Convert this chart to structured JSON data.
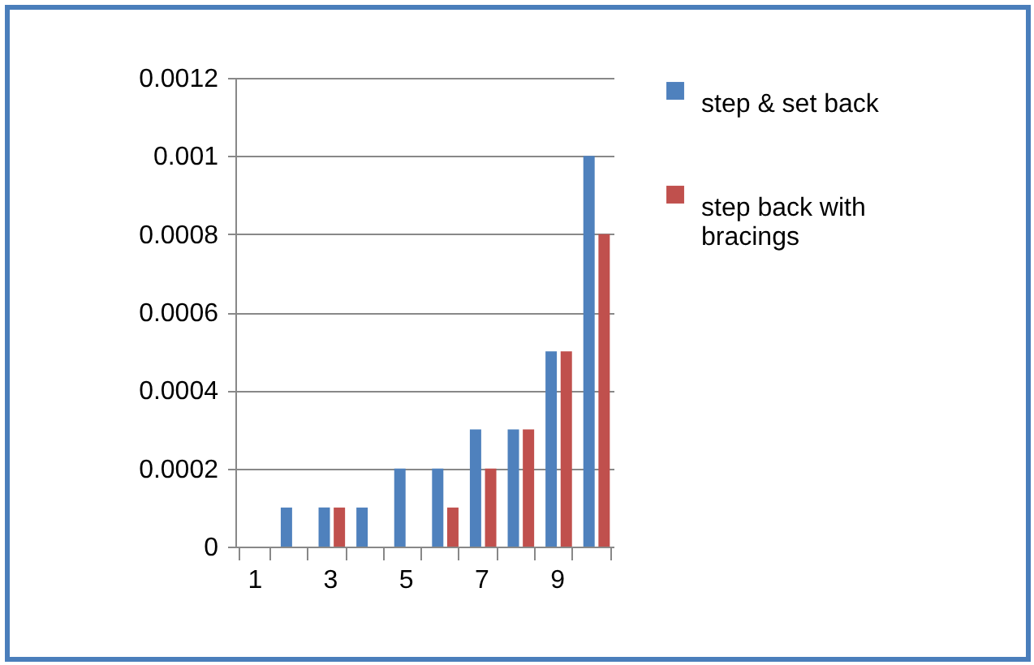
{
  "chart_data": {
    "type": "bar",
    "categories": [
      "1",
      null,
      "3",
      null,
      "5",
      null,
      "7",
      null,
      "9",
      null
    ],
    "series": [
      {
        "name": "step & set back",
        "color": "#4f81bd",
        "values": [
          0,
          0.0001,
          0.0001,
          0.0001,
          0.0002,
          0.0002,
          0.0003,
          0.0003,
          0.0005,
          0.001
        ]
      },
      {
        "name": "step back with bracings",
        "color": "#c0504d",
        "values": [
          0,
          0,
          0.0001,
          0,
          0,
          0.0001,
          0.0002,
          0.0003,
          0.0005,
          0.0008
        ]
      }
    ],
    "ylim": [
      0,
      0.0012
    ],
    "yticks": [
      0,
      0.0002,
      0.0004,
      0.0006,
      0.0008,
      0.001,
      0.0012
    ],
    "grid": "y",
    "legend": "right"
  }
}
